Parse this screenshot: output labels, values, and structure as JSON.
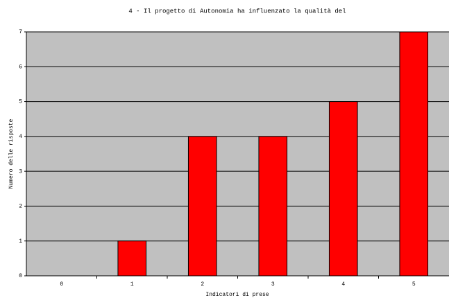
{
  "chart_data": {
    "type": "bar",
    "title": "4 - Il progetto di Autonomia ha influenzato la qualità del",
    "x_label": "Indicatori di prese",
    "y_label": "Numero delle risposte",
    "categories": [
      "0",
      "1",
      "2",
      "3",
      "4",
      "5"
    ],
    "values": [
      0,
      1,
      4,
      4,
      5,
      7
    ],
    "color": "#ff0000",
    "ylim": [
      0,
      7
    ],
    "yticks": [
      0,
      1,
      2,
      3,
      4,
      5,
      6,
      7
    ],
    "grid": true
  }
}
